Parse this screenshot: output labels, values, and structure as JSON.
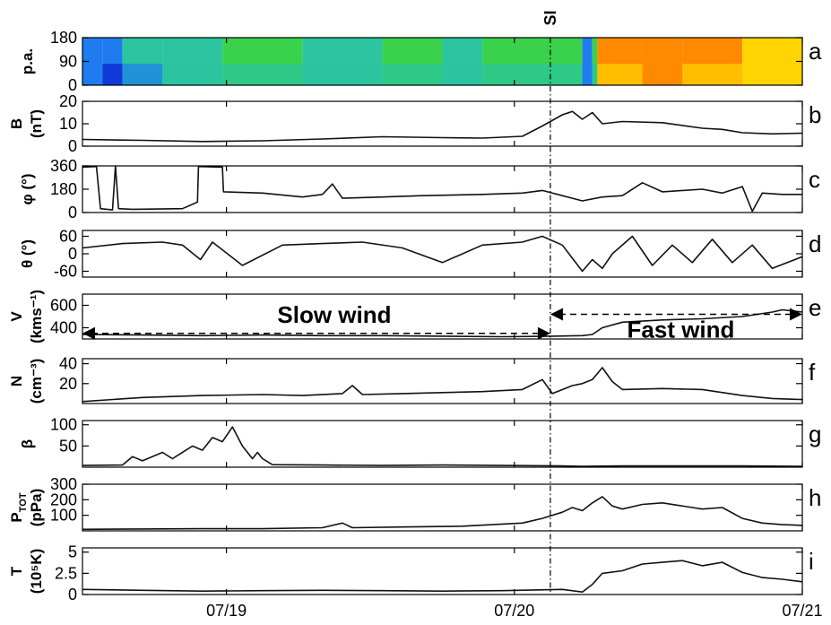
{
  "chart_data": {
    "type": "line",
    "time_range": [
      "07/18 12:00",
      "07/21 00:00"
    ],
    "x_tick_labels": [
      "07/19",
      "07/20",
      "07/21"
    ],
    "event": {
      "label": "SI",
      "time": "07/20 03:00"
    },
    "annotations": [
      {
        "text": "Slow wind",
        "from": "07/18 12:00",
        "to": "07/20 03:00",
        "panel": "e",
        "value": 350
      },
      {
        "text": "Fast wind",
        "from": "07/20 03:00",
        "to": "07/21 00:00",
        "panel": "e",
        "value": 520
      }
    ],
    "panels": [
      {
        "id": "a",
        "letter": "a",
        "type": "heatmap",
        "ylabel": "p.a.",
        "ylim": [
          0,
          180
        ],
        "yticks": [
          "180",
          "90",
          "0"
        ],
        "description_colors": [
          "#0018c8",
          "#1e90ff",
          "#22c55e",
          "#f5e400",
          "#ff2a00"
        ],
        "segments": [
          {
            "t": 0.0,
            "level": 0.18
          },
          {
            "t": 2.0,
            "level": 0.12
          },
          {
            "t": 4.0,
            "level": 0.25
          },
          {
            "t": 8.0,
            "level": 0.32
          },
          {
            "t": 14.0,
            "level": 0.38
          },
          {
            "t": 22.0,
            "level": 0.34
          },
          {
            "t": 30.0,
            "level": 0.36
          },
          {
            "t": 36.0,
            "level": 0.3
          },
          {
            "t": 40.0,
            "level": 0.4
          },
          {
            "t": 46.0,
            "level": 0.42
          },
          {
            "t": 50.0,
            "level": 0.18
          },
          {
            "t": 51.0,
            "level": 0.4
          },
          {
            "t": 51.5,
            "level": 0.85
          },
          {
            "t": 56.0,
            "level": 0.9
          },
          {
            "t": 60.0,
            "level": 0.82
          },
          {
            "t": 66.0,
            "level": 0.78
          },
          {
            "t": 72.0,
            "level": 0.74
          }
        ]
      },
      {
        "id": "b",
        "letter": "b",
        "ylabel": "B",
        "ylabel2": "(nT)",
        "ylim": [
          0,
          20
        ],
        "yticks": [
          0,
          10,
          20
        ],
        "series": [
          {
            "values": [
              [
                0,
                3
              ],
              [
                6,
                2.6
              ],
              [
                12,
                2.1
              ],
              [
                18,
                2.4
              ],
              [
                24,
                3.2
              ],
              [
                30,
                4.2
              ],
              [
                36,
                3.8
              ],
              [
                40,
                3.6
              ],
              [
                44,
                4.4
              ],
              [
                46,
                9
              ],
              [
                48,
                14
              ],
              [
                49,
                15.5
              ],
              [
                50,
                12
              ],
              [
                51,
                15
              ],
              [
                52,
                10
              ],
              [
                54,
                11
              ],
              [
                58,
                10.5
              ],
              [
                62,
                8
              ],
              [
                64,
                7.5
              ],
              [
                66,
                6
              ],
              [
                69,
                5.5
              ],
              [
                72,
                5.8
              ]
            ]
          }
        ]
      },
      {
        "id": "c",
        "letter": "c",
        "ylabel": "φ (°)",
        "ylim": [
          0,
          360
        ],
        "yticks": [
          0,
          180,
          360
        ],
        "series": [
          {
            "values": [
              [
                0,
                350
              ],
              [
                1.4,
                355
              ],
              [
                1.8,
                30
              ],
              [
                3,
                20
              ],
              [
                3.3,
                360
              ],
              [
                3.6,
                30
              ],
              [
                5,
                25
              ],
              [
                10,
                30
              ],
              [
                11.5,
                80
              ],
              [
                11.6,
                355
              ],
              [
                14,
                350
              ],
              [
                14.1,
                160
              ],
              [
                18,
                150
              ],
              [
                22,
                120
              ],
              [
                24,
                140
              ],
              [
                25,
                220
              ],
              [
                26,
                110
              ],
              [
                30,
                120
              ],
              [
                34,
                130
              ],
              [
                40,
                140
              ],
              [
                44,
                150
              ],
              [
                46,
                170
              ],
              [
                48,
                130
              ],
              [
                50,
                90
              ],
              [
                52,
                120
              ],
              [
                54,
                130
              ],
              [
                56,
                230
              ],
              [
                58,
                160
              ],
              [
                62,
                180
              ],
              [
                64,
                150
              ],
              [
                66,
                200
              ],
              [
                67,
                10
              ],
              [
                68,
                150
              ],
              [
                70,
                140
              ],
              [
                72,
                140
              ]
            ]
          }
        ]
      },
      {
        "id": "d",
        "letter": "d",
        "ylabel": "θ (°)",
        "ylim": [
          -80,
          80
        ],
        "yticks": [
          -60,
          0,
          60
        ],
        "series": [
          {
            "values": [
              [
                0,
                20
              ],
              [
                4,
                35
              ],
              [
                8,
                40
              ],
              [
                10,
                30
              ],
              [
                11.8,
                -20
              ],
              [
                13,
                40
              ],
              [
                16,
                -40
              ],
              [
                20,
                30
              ],
              [
                24,
                35
              ],
              [
                28,
                40
              ],
              [
                32,
                20
              ],
              [
                36,
                -30
              ],
              [
                40,
                30
              ],
              [
                44,
                40
              ],
              [
                46,
                60
              ],
              [
                48,
                30
              ],
              [
                50,
                -60
              ],
              [
                51,
                -20
              ],
              [
                52,
                -50
              ],
              [
                53,
                0
              ],
              [
                55,
                60
              ],
              [
                57,
                -40
              ],
              [
                59,
                30
              ],
              [
                61,
                -30
              ],
              [
                63,
                50
              ],
              [
                65,
                -30
              ],
              [
                67,
                30
              ],
              [
                69,
                -50
              ],
              [
                72,
                -10
              ]
            ]
          }
        ]
      },
      {
        "id": "e",
        "letter": "e",
        "ylabel": "V",
        "ylabel2": "(kms⁻¹)",
        "ylim": [
          300,
          700
        ],
        "yticks": [
          400,
          600
        ],
        "series": [
          {
            "values": [
              [
                0,
                340
              ],
              [
                6,
                335
              ],
              [
                12,
                330
              ],
              [
                18,
                335
              ],
              [
                24,
                330
              ],
              [
                30,
                330
              ],
              [
                36,
                325
              ],
              [
                42,
                320
              ],
              [
                47,
                325
              ],
              [
                50,
                330
              ],
              [
                51,
                340
              ],
              [
                52,
                400
              ],
              [
                54,
                450
              ],
              [
                58,
                470
              ],
              [
                62,
                480
              ],
              [
                66,
                500
              ],
              [
                69,
                540
              ],
              [
                70,
                560
              ],
              [
                72,
                540
              ]
            ]
          }
        ]
      },
      {
        "id": "f",
        "letter": "f",
        "ylabel": "N",
        "ylabel2": "(cm⁻³)",
        "ylim": [
          0,
          45
        ],
        "yticks": [
          20,
          40
        ],
        "series": [
          {
            "values": [
              [
                0,
                2
              ],
              [
                6,
                6
              ],
              [
                12,
                8
              ],
              [
                18,
                9
              ],
              [
                22,
                8
              ],
              [
                26,
                10
              ],
              [
                27,
                18
              ],
              [
                28,
                9
              ],
              [
                32,
                10
              ],
              [
                36,
                11
              ],
              [
                40,
                12
              ],
              [
                44,
                14
              ],
              [
                46,
                24
              ],
              [
                47,
                10
              ],
              [
                49,
                18
              ],
              [
                50,
                20
              ],
              [
                51,
                24
              ],
              [
                52,
                36
              ],
              [
                53,
                22
              ],
              [
                54,
                14
              ],
              [
                58,
                15
              ],
              [
                62,
                14
              ],
              [
                66,
                8
              ],
              [
                69,
                5
              ],
              [
                72,
                4
              ]
            ]
          }
        ]
      },
      {
        "id": "g",
        "letter": "g",
        "ylabel": "β",
        "ylim": [
          0,
          110
        ],
        "yticks": [
          50,
          100
        ],
        "series": [
          {
            "values": [
              [
                0,
                4
              ],
              [
                4,
                5
              ],
              [
                5,
                25
              ],
              [
                6,
                15
              ],
              [
                8,
                35
              ],
              [
                9,
                20
              ],
              [
                11,
                50
              ],
              [
                12,
                40
              ],
              [
                13,
                70
              ],
              [
                14,
                60
              ],
              [
                15,
                95
              ],
              [
                16,
                50
              ],
              [
                17,
                20
              ],
              [
                17.5,
                35
              ],
              [
                18,
                20
              ],
              [
                19,
                6
              ],
              [
                24,
                5
              ],
              [
                30,
                4
              ],
              [
                36,
                5
              ],
              [
                42,
                4
              ],
              [
                48,
                3
              ],
              [
                50,
                2
              ],
              [
                54,
                3
              ],
              [
                60,
                3
              ],
              [
                66,
                3
              ],
              [
                72,
                2
              ]
            ]
          }
        ]
      },
      {
        "id": "h",
        "letter": "h",
        "ylabel": "P",
        "ylabel_sub": "TOT",
        "ylabel2": "(pPa)",
        "ylim": [
          0,
          300
        ],
        "yticks": [
          100,
          200,
          300
        ],
        "series": [
          {
            "values": [
              [
                0,
                10
              ],
              [
                6,
                12
              ],
              [
                12,
                14
              ],
              [
                18,
                14
              ],
              [
                24,
                20
              ],
              [
                26,
                50
              ],
              [
                27,
                20
              ],
              [
                32,
                25
              ],
              [
                38,
                30
              ],
              [
                44,
                50
              ],
              [
                46,
                80
              ],
              [
                48,
                120
              ],
              [
                49,
                150
              ],
              [
                50,
                130
              ],
              [
                51,
                180
              ],
              [
                52,
                220
              ],
              [
                53,
                160
              ],
              [
                54,
                140
              ],
              [
                56,
                170
              ],
              [
                58,
                180
              ],
              [
                62,
                140
              ],
              [
                64,
                150
              ],
              [
                66,
                80
              ],
              [
                68,
                50
              ],
              [
                70,
                40
              ],
              [
                72,
                35
              ]
            ]
          }
        ]
      },
      {
        "id": "i",
        "letter": "i",
        "ylabel": "T",
        "ylabel2": "(10⁵K)",
        "ylim": [
          0,
          5.5
        ],
        "yticks": [
          0,
          2.5,
          5
        ],
        "series": [
          {
            "values": [
              [
                0,
                0.6
              ],
              [
                6,
                0.5
              ],
              [
                12,
                0.4
              ],
              [
                18,
                0.45
              ],
              [
                24,
                0.5
              ],
              [
                30,
                0.45
              ],
              [
                36,
                0.4
              ],
              [
                42,
                0.45
              ],
              [
                48,
                0.6
              ],
              [
                50,
                0.3
              ],
              [
                51,
                1.2
              ],
              [
                52,
                2.5
              ],
              [
                54,
                2.8
              ],
              [
                56,
                3.6
              ],
              [
                58,
                3.8
              ],
              [
                60,
                4.0
              ],
              [
                62,
                3.4
              ],
              [
                64,
                3.8
              ],
              [
                66,
                2.6
              ],
              [
                68,
                2.0
              ],
              [
                70,
                1.8
              ],
              [
                72,
                1.5
              ]
            ]
          }
        ]
      }
    ]
  }
}
